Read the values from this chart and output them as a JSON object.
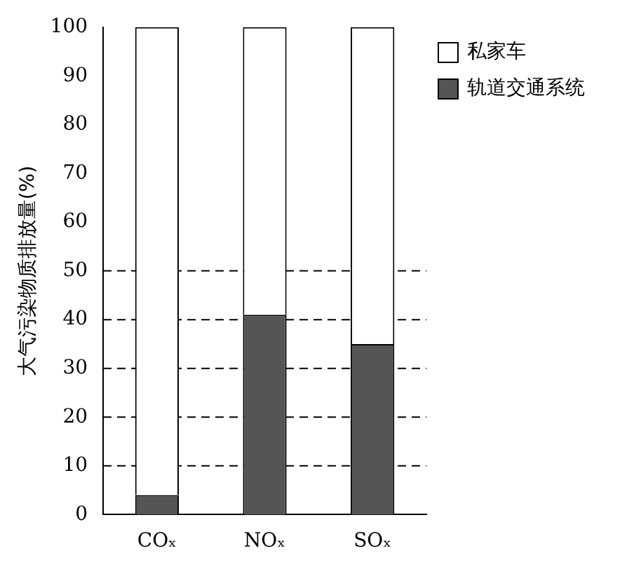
{
  "chart_data": {
    "type": "bar",
    "stacked": true,
    "categories": [
      "COₓ",
      "NOₓ",
      "SOₓ"
    ],
    "ylabel": "大气污染物质排放量(%)",
    "series": [
      {
        "name": "轨道交通系统",
        "color": "#555555",
        "values": [
          4,
          41,
          35
        ]
      },
      {
        "name": "私家车",
        "color": "#ffffff",
        "values": [
          96,
          59,
          65
        ]
      }
    ],
    "ylim": [
      0,
      100
    ],
    "yticks": [
      0,
      10,
      20,
      30,
      40,
      50,
      60,
      70,
      80,
      90,
      100
    ],
    "grid": false,
    "legend": "top right",
    "ref_lines": [
      {
        "axis": "y",
        "value": 10,
        "line_style": "dashed"
      },
      {
        "axis": "y",
        "value": 20,
        "line_style": "dashed"
      },
      {
        "axis": "y",
        "value": 30,
        "line_style": "dashed"
      },
      {
        "axis": "y",
        "value": 40,
        "line_style": "dashed"
      },
      {
        "axis": "y",
        "value": 50,
        "line_style": "dashed"
      }
    ]
  }
}
